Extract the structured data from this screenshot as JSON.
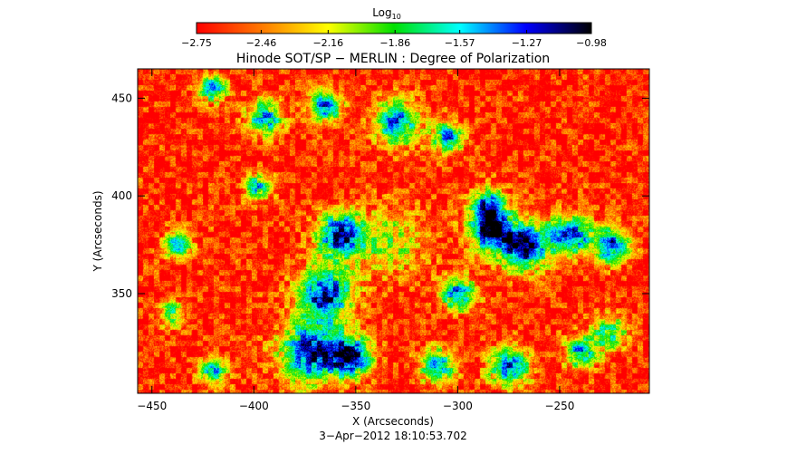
{
  "chart_data": {
    "type": "heatmap",
    "title": "Hinode SOT/SP − MERLIN : Degree of Polarization",
    "subtitle": "3−Apr−2012  18:10:53.702",
    "xlabel": "X (Arcseconds)",
    "ylabel": "Y (Arcseconds)",
    "xlim": [
      -457,
      -206
    ],
    "ylim": [
      299,
      465
    ],
    "x_ticks": [
      -450,
      -400,
      -350,
      -300,
      -250
    ],
    "x_tick_labels": [
      "−450",
      "−400",
      "−350",
      "−300",
      "−250"
    ],
    "y_ticks": [
      350,
      400,
      450
    ],
    "y_tick_labels": [
      "350",
      "400",
      "450"
    ],
    "colorbar": {
      "label_base": "Log",
      "label_sub": "10",
      "range": [
        -2.75,
        -0.98
      ],
      "ticks": [
        -2.75,
        -2.46,
        -2.16,
        -1.86,
        -1.57,
        -1.27,
        -0.98
      ],
      "tick_labels": [
        "−2.75",
        "−2.46",
        "−2.16",
        "−1.86",
        "−1.57",
        "−1.27",
        "−0.98"
      ],
      "colormap": "rainbow"
    },
    "colormap_stops": [
      "#ff0000",
      "#ff7a00",
      "#ffff00",
      "#00e000",
      "#00ffff",
      "#0000ff",
      "#000000"
    ],
    "field_background_value": -2.68,
    "field_features": [
      {
        "x": -358,
        "y": 380,
        "r": 10,
        "value": -1.1
      },
      {
        "x": -365,
        "y": 350,
        "r": 12,
        "value": -1.15
      },
      {
        "x": -372,
        "y": 320,
        "r": 14,
        "value": -1.15
      },
      {
        "x": -352,
        "y": 318,
        "r": 9,
        "value": -1.2
      },
      {
        "x": -333,
        "y": 376,
        "r": 16,
        "value": -2.05
      },
      {
        "x": -268,
        "y": 375,
        "r": 11,
        "value": -0.98
      },
      {
        "x": -285,
        "y": 382,
        "r": 9,
        "value": -1.25
      },
      {
        "x": -245,
        "y": 380,
        "r": 9,
        "value": -1.3
      },
      {
        "x": -225,
        "y": 375,
        "r": 8,
        "value": -1.3
      },
      {
        "x": -285,
        "y": 395,
        "r": 8,
        "value": -1.35
      },
      {
        "x": -300,
        "y": 350,
        "r": 8,
        "value": -1.45
      },
      {
        "x": -395,
        "y": 440,
        "r": 8,
        "value": -1.45
      },
      {
        "x": -365,
        "y": 446,
        "r": 7,
        "value": -1.35
      },
      {
        "x": -330,
        "y": 438,
        "r": 10,
        "value": -1.4
      },
      {
        "x": -305,
        "y": 430,
        "r": 7,
        "value": -1.45
      },
      {
        "x": -420,
        "y": 455,
        "r": 6,
        "value": -1.4
      },
      {
        "x": -438,
        "y": 375,
        "r": 6,
        "value": -1.4
      },
      {
        "x": -275,
        "y": 313,
        "r": 9,
        "value": -1.35
      },
      {
        "x": -310,
        "y": 313,
        "r": 8,
        "value": -1.5
      },
      {
        "x": -240,
        "y": 320,
        "r": 7,
        "value": -1.5
      },
      {
        "x": -420,
        "y": 310,
        "r": 6,
        "value": -1.55
      },
      {
        "x": -398,
        "y": 405,
        "r": 6,
        "value": -1.6
      },
      {
        "x": -440,
        "y": 340,
        "r": 6,
        "value": -1.8
      },
      {
        "x": -226,
        "y": 330,
        "r": 8,
        "value": -1.7
      }
    ]
  }
}
